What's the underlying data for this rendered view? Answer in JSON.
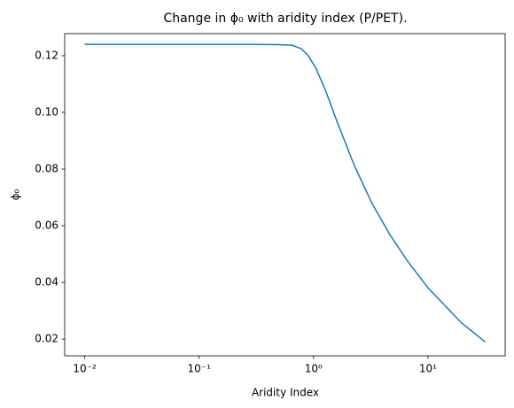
{
  "chart_data": {
    "type": "line",
    "title": "Change in ϕ₀ with aridity index (P/PET).",
    "x_label": "Aridity Index",
    "y_label": "ϕ₀",
    "x_scale": "log",
    "x": [
      0.01,
      0.1,
      0.3,
      0.5,
      0.65,
      0.78,
      0.9,
      1.05,
      1.28,
      1.59,
      2.27,
      3.25,
      4.64,
      6.64,
      10,
      13.6,
      19.4,
      31.6
    ],
    "series": [
      {
        "color": "#1f77b4",
        "values": [
          0.124,
          0.124,
          0.124,
          0.1239,
          0.1237,
          0.1225,
          0.12,
          0.1156,
          0.1075,
          0.0972,
          0.0813,
          0.0678,
          0.0569,
          0.0475,
          0.0381,
          0.0325,
          0.0259,
          0.019
        ]
      }
    ],
    "xlim": [
      0.00668,
      47.3
    ],
    "ylim": [
      0.0141,
      0.1278
    ],
    "xticks": [
      {
        "value": 0.01,
        "label": "10⁻²"
      },
      {
        "value": 0.1,
        "label": "10⁻¹"
      },
      {
        "value": 1,
        "label": "10⁰"
      },
      {
        "value": 10,
        "label": "10¹"
      }
    ],
    "yticks": [
      0.02,
      0.04,
      0.06,
      0.08,
      {
        "value": 0.1,
        "label": "0.10"
      },
      0.12
    ],
    "grid": false
  }
}
